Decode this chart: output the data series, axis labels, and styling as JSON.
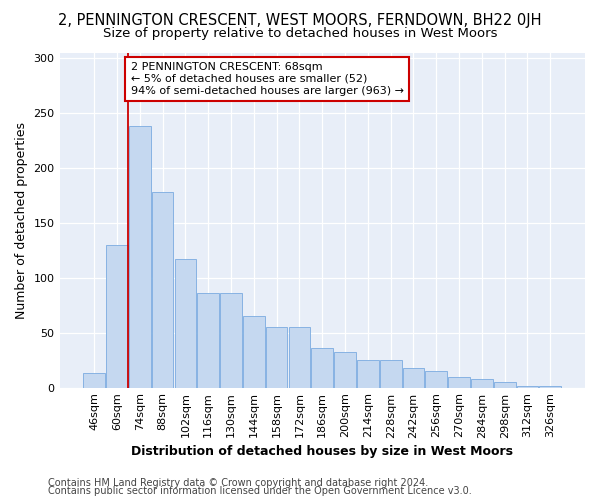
{
  "title_line1": "2, PENNINGTON CRESCENT, WEST MOORS, FERNDOWN, BH22 0JH",
  "title_line2": "Size of property relative to detached houses in West Moors",
  "xlabel": "Distribution of detached houses by size in West Moors",
  "ylabel": "Number of detached properties",
  "categories": [
    "46sqm",
    "60sqm",
    "74sqm",
    "88sqm",
    "102sqm",
    "116sqm",
    "130sqm",
    "144sqm",
    "158sqm",
    "172sqm",
    "186sqm",
    "200sqm",
    "214sqm",
    "228sqm",
    "242sqm",
    "256sqm",
    "270sqm",
    "284sqm",
    "298sqm",
    "312sqm",
    "326sqm"
  ],
  "values": [
    13,
    130,
    238,
    178,
    117,
    86,
    86,
    65,
    55,
    55,
    36,
    32,
    25,
    25,
    18,
    15,
    10,
    8,
    5,
    1,
    1
  ],
  "bar_color": "#c5d8f0",
  "bar_edge_color": "#7aabe0",
  "vline_x": 1.5,
  "vline_color": "#cc0000",
  "annotation_text": "2 PENNINGTON CRESCENT: 68sqm\n← 5% of detached houses are smaller (52)\n94% of semi-detached houses are larger (963) →",
  "annotation_box_facecolor": "#ffffff",
  "annotation_box_edgecolor": "#cc0000",
  "ylim": [
    0,
    305
  ],
  "yticks": [
    0,
    50,
    100,
    150,
    200,
    250,
    300
  ],
  "plot_bg_color": "#e8eef8",
  "fig_bg_color": "#ffffff",
  "footer_line1": "Contains HM Land Registry data © Crown copyright and database right 2024.",
  "footer_line2": "Contains public sector information licensed under the Open Government Licence v3.0.",
  "title1_fontsize": 10.5,
  "title2_fontsize": 9.5,
  "xlabel_fontsize": 9,
  "ylabel_fontsize": 9,
  "tick_fontsize": 8,
  "annot_fontsize": 8,
  "footer_fontsize": 7
}
